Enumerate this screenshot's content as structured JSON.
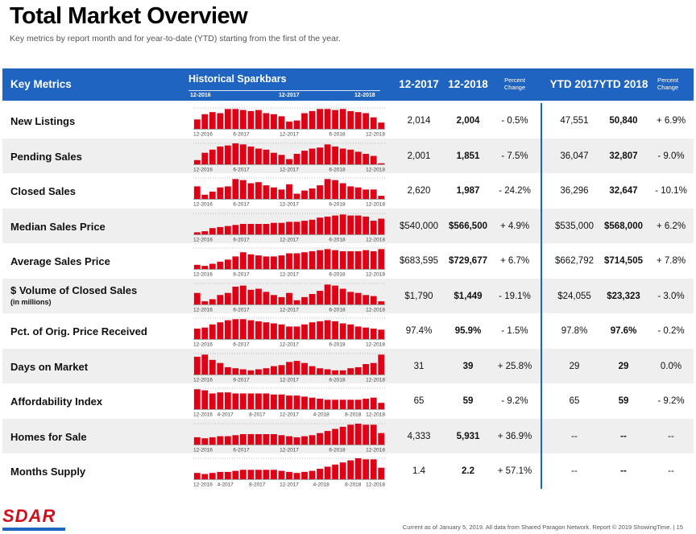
{
  "title": "Total Market Overview",
  "subtitle": "Key metrics by report month and for year-to-date (YTD) starting from the first of the year.",
  "header": {
    "key_metrics": "Key Metrics",
    "sparkbars": "Historical Sparkbars",
    "tick_labels": [
      "12-2016",
      "12-2017",
      "12-2018"
    ],
    "col_1": "12-2017",
    "col_2": "12-2018",
    "pct_change": "Percent Change",
    "col_3": "YTD 2017",
    "col_4": "YTD 2018",
    "pct_change_2": "Percent Change"
  },
  "colors": {
    "header_bg": "#1f64c0",
    "bar": "#e00015",
    "shade": "#efefef"
  },
  "rows": [
    {
      "label": "New Listings",
      "sublabel": "",
      "v2017": "2,014",
      "v2018": "2,004",
      "pct": "- 0.5%",
      "ytd2017": "47,551",
      "ytd2018": "50,840",
      "ytd_pct": "+ 6.9%",
      "axis": [
        "12-2016",
        "6-2017",
        "12-2017",
        "6-2018",
        "12-2018"
      ],
      "bars": [
        0.45,
        0.7,
        0.8,
        0.75,
        0.95,
        0.95,
        0.9,
        0.85,
        0.9,
        0.75,
        0.7,
        0.6,
        0.35,
        0.4,
        0.75,
        0.85,
        0.95,
        0.95,
        0.9,
        0.95,
        0.85,
        0.8,
        0.75,
        0.55,
        0.3
      ]
    },
    {
      "label": "Pending Sales",
      "sublabel": "",
      "v2017": "2,001",
      "v2018": "1,851",
      "pct": "- 7.5%",
      "ytd2017": "36,047",
      "ytd2018": "32,807",
      "ytd_pct": "- 9.0%",
      "axis": [
        "12-2016",
        "6-2017",
        "12-2017",
        "6-2018",
        "12-2018"
      ],
      "bars": [
        0.2,
        0.55,
        0.7,
        0.85,
        0.9,
        1.0,
        0.95,
        0.85,
        0.75,
        0.7,
        0.55,
        0.45,
        0.25,
        0.5,
        0.65,
        0.75,
        0.8,
        0.95,
        0.85,
        0.75,
        0.7,
        0.6,
        0.5,
        0.4,
        0.05
      ]
    },
    {
      "label": "Closed Sales",
      "sublabel": "",
      "v2017": "2,620",
      "v2018": "1,987",
      "pct": "- 24.2%",
      "ytd2017": "36,296",
      "ytd2018": "32,647",
      "ytd_pct": "- 10.1%",
      "axis": [
        "12-2016",
        "6-2017",
        "12-2017",
        "6-2018",
        "12-2018"
      ],
      "bars": [
        0.6,
        0.2,
        0.35,
        0.55,
        0.6,
        0.95,
        0.9,
        0.75,
        0.8,
        0.65,
        0.55,
        0.45,
        0.7,
        0.25,
        0.4,
        0.5,
        0.65,
        0.95,
        0.9,
        0.75,
        0.6,
        0.55,
        0.45,
        0.45,
        0.15
      ]
    },
    {
      "label": "Median Sales Price",
      "sublabel": "",
      "v2017": "$540,000",
      "v2018": "$566,500",
      "pct": "+ 4.9%",
      "ytd2017": "$535,000",
      "ytd2018": "$568,000",
      "ytd_pct": "+ 6.2%",
      "axis": [
        "12-2016",
        "6-2017",
        "12-2017",
        "6-2018",
        "12-2018"
      ],
      "bars": [
        0.1,
        0.15,
        0.3,
        0.35,
        0.4,
        0.45,
        0.5,
        0.5,
        0.5,
        0.5,
        0.55,
        0.55,
        0.6,
        0.6,
        0.65,
        0.7,
        0.8,
        0.85,
        0.9,
        0.95,
        0.9,
        0.9,
        0.85,
        0.65,
        0.75
      ]
    },
    {
      "label": "Average Sales Price",
      "sublabel": "",
      "v2017": "$683,595",
      "v2018": "$729,677",
      "pct": "+ 6.7%",
      "ytd2017": "$662,792",
      "ytd2018": "$714,505",
      "ytd_pct": "+ 7.8%",
      "axis": [
        "12-2016",
        "6-2017",
        "12-2017",
        "6-2018",
        "12-2018"
      ],
      "bars": [
        0.2,
        0.15,
        0.25,
        0.35,
        0.45,
        0.6,
        0.8,
        0.7,
        0.65,
        0.6,
        0.6,
        0.65,
        0.75,
        0.75,
        0.8,
        0.85,
        0.9,
        0.95,
        0.9,
        0.85,
        0.85,
        0.85,
        0.9,
        0.85,
        0.95
      ]
    },
    {
      "label": "$ Volume of Closed Sales",
      "sublabel": "(in millions)",
      "v2017": "$1,790",
      "v2018": "$1,449",
      "pct": "- 19.1%",
      "ytd2017": "$24,055",
      "ytd2018": "$23,323",
      "ytd_pct": "- 3.0%",
      "axis": [
        "12-2016",
        "6-2017",
        "12-2017",
        "6-2018",
        "12-2018"
      ],
      "bars": [
        0.55,
        0.15,
        0.25,
        0.45,
        0.55,
        0.85,
        0.9,
        0.7,
        0.75,
        0.6,
        0.45,
        0.35,
        0.55,
        0.2,
        0.35,
        0.5,
        0.65,
        0.95,
        0.9,
        0.75,
        0.6,
        0.55,
        0.45,
        0.4,
        0.15
      ]
    },
    {
      "label": "Pct. of Orig. Price Received",
      "sublabel": "",
      "v2017": "97.4%",
      "v2018": "95.9%",
      "pct": "- 1.5%",
      "ytd2017": "97.8%",
      "ytd2018": "97.6%",
      "ytd_pct": "- 0.2%",
      "axis": [
        "12-2016",
        "6-2017",
        "12-2017",
        "6-2018",
        "12-2018"
      ],
      "bars": [
        0.5,
        0.55,
        0.7,
        0.8,
        0.9,
        0.95,
        0.95,
        0.9,
        0.85,
        0.8,
        0.75,
        0.7,
        0.6,
        0.6,
        0.7,
        0.8,
        0.85,
        0.9,
        0.85,
        0.75,
        0.7,
        0.6,
        0.55,
        0.5,
        0.45
      ]
    },
    {
      "label": "Days on Market",
      "sublabel": "",
      "v2017": "31",
      "v2018": "39",
      "pct": "+ 25.8%",
      "ytd2017": "29",
      "ytd2018": "29",
      "ytd_pct": "0.0%",
      "axis": [
        "12-2016",
        "6-2017",
        "12-2017",
        "6-2018",
        "12-2018"
      ],
      "bars": [
        0.85,
        0.95,
        0.7,
        0.55,
        0.35,
        0.3,
        0.25,
        0.2,
        0.25,
        0.3,
        0.4,
        0.45,
        0.6,
        0.65,
        0.55,
        0.4,
        0.3,
        0.25,
        0.2,
        0.2,
        0.3,
        0.35,
        0.5,
        0.55,
        0.95
      ]
    },
    {
      "label": "Affordability Index",
      "sublabel": "",
      "v2017": "65",
      "v2018": "59",
      "pct": "- 9.2%",
      "ytd2017": "65",
      "ytd2018": "59",
      "ytd_pct": "- 9.2%",
      "axis": [
        "12-2016",
        "4-2017",
        "8-2017",
        "12-2017",
        "4-2018",
        "8-2018",
        "12-2018"
      ],
      "bars": [
        0.95,
        0.9,
        0.75,
        0.8,
        0.8,
        0.75,
        0.75,
        0.75,
        0.75,
        0.75,
        0.7,
        0.7,
        0.65,
        0.65,
        0.6,
        0.55,
        0.5,
        0.45,
        0.45,
        0.45,
        0.45,
        0.45,
        0.5,
        0.55,
        0.3
      ]
    },
    {
      "label": "Homes for Sale",
      "sublabel": "",
      "v2017": "4,333",
      "v2018": "5,931",
      "pct": "+ 36.9%",
      "ytd2017": "--",
      "ytd2018": "--",
      "ytd_pct": "--",
      "axis": [
        "12-2016",
        "6-2017",
        "12-2017",
        "6-2018",
        "12-2018"
      ],
      "bars": [
        0.35,
        0.3,
        0.35,
        0.4,
        0.4,
        0.45,
        0.5,
        0.5,
        0.5,
        0.5,
        0.5,
        0.45,
        0.4,
        0.35,
        0.4,
        0.45,
        0.55,
        0.65,
        0.75,
        0.85,
        0.95,
        1.0,
        0.95,
        0.95,
        0.55
      ]
    },
    {
      "label": "Months Supply",
      "sublabel": "",
      "v2017": "1.4",
      "v2018": "2.2",
      "pct": "+ 57.1%",
      "ytd2017": "--",
      "ytd2018": "--",
      "ytd_pct": "--",
      "axis": [
        "12-2016",
        "4-2017",
        "8-2017",
        "12-2017",
        "4-2018",
        "8-2018",
        "12-2018"
      ],
      "bars": [
        0.3,
        0.25,
        0.3,
        0.35,
        0.35,
        0.4,
        0.45,
        0.45,
        0.45,
        0.45,
        0.45,
        0.4,
        0.35,
        0.3,
        0.35,
        0.4,
        0.5,
        0.6,
        0.7,
        0.8,
        0.9,
        1.0,
        0.95,
        0.95,
        0.55
      ]
    }
  ],
  "logo": "SDAR",
  "footer": "Current as of January 5, 2019. All data from Shared Paragon Network. Report © 2019 ShowingTime.  |  15"
}
